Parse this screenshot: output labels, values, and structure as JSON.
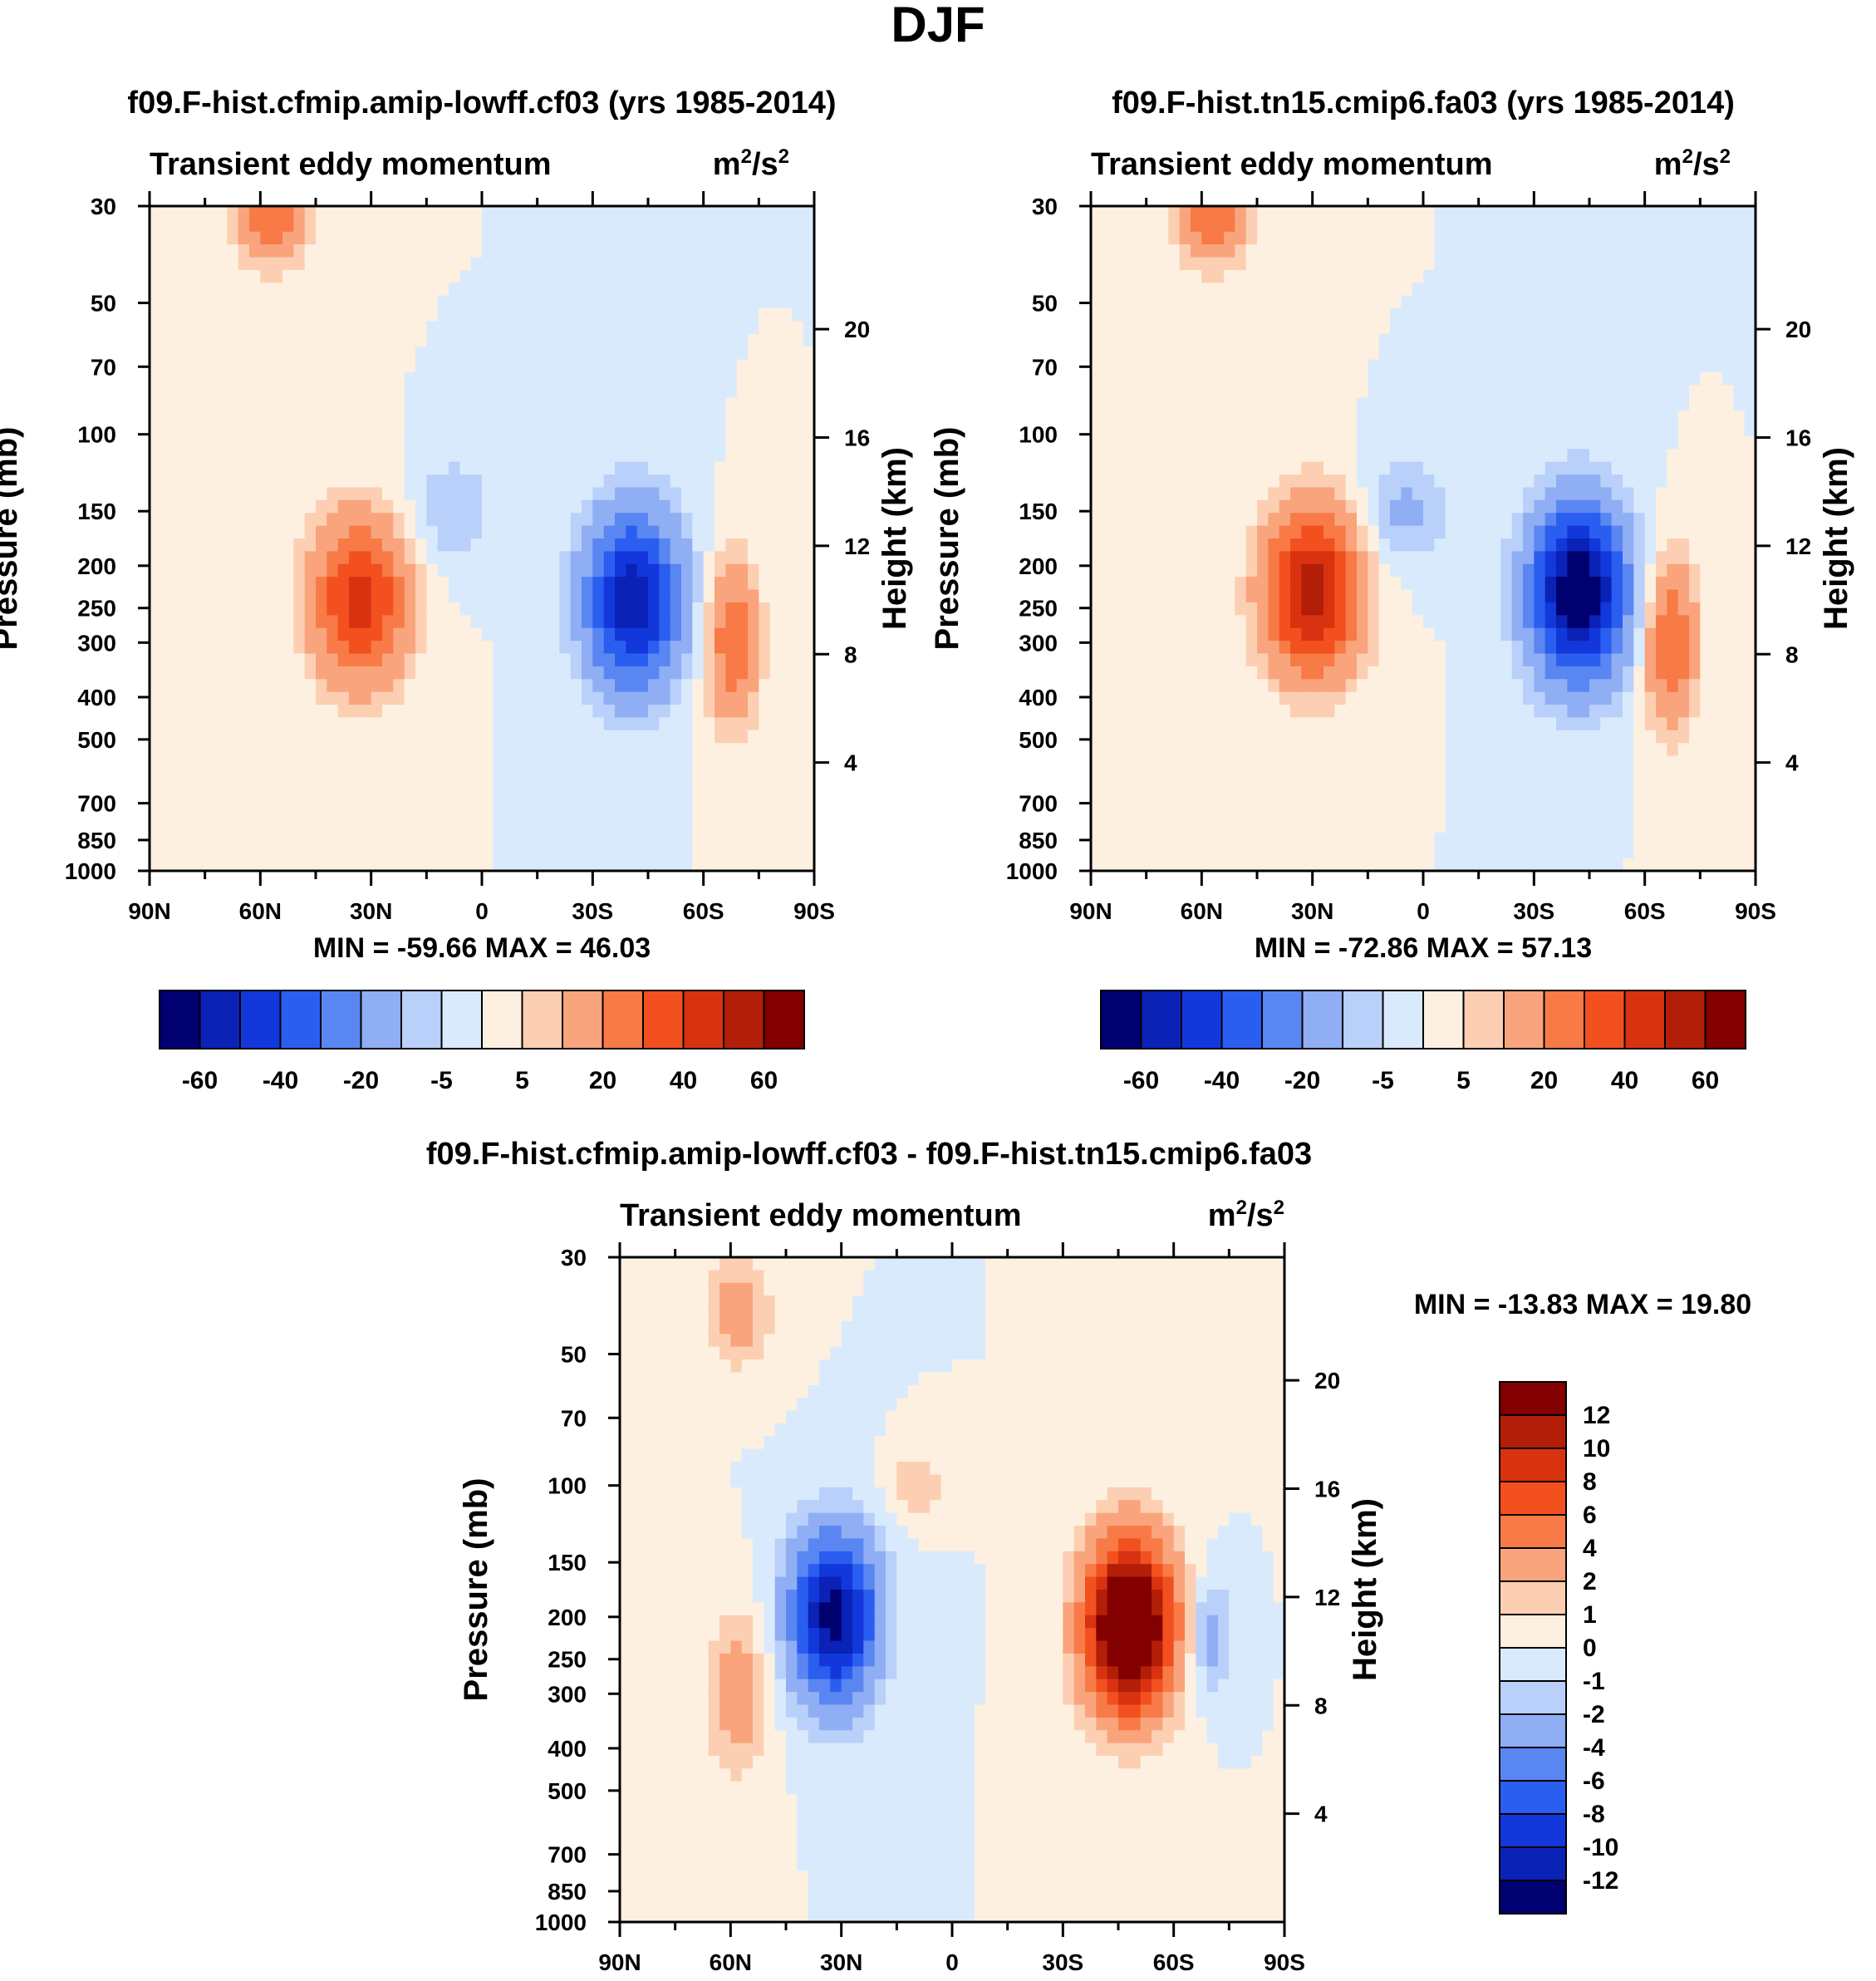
{
  "figure": {
    "title": "DJF"
  },
  "colors": {
    "levels": [
      "#000070",
      "#0a22b6",
      "#1238dc",
      "#2a5ef0",
      "#5a86f2",
      "#8faef4",
      "#b9d0fa",
      "#d9eafd",
      "#fdf0e0",
      "#fccfb3",
      "#f9a47c",
      "#f77a47",
      "#f3501f",
      "#d83210",
      "#b31e08",
      "#820000"
    ]
  },
  "icons": {
    "colorbar": "colorbar-icon"
  },
  "chart_data": [
    {
      "type": "heatmap",
      "id": "model",
      "case_title": "f09.F-hist.cfmip.amip-lowff.cf03 (yrs 1985-2014)",
      "left_string": "Transient eddy momentum",
      "units": "m²/s²",
      "units_base": "m",
      "units_mid": "/s",
      "ylabel": "Pressure (mb)",
      "y2label": "Height (km)",
      "x_ticks": [
        "90N",
        "60N",
        "30N",
        "0",
        "30S",
        "60S",
        "90S"
      ],
      "x_tick_values": [
        90,
        60,
        30,
        0,
        -30,
        -60,
        -90
      ],
      "y_ticks": [
        "30",
        "50",
        "70",
        "100",
        "150",
        "200",
        "250",
        "300",
        "400",
        "500",
        "700",
        "850",
        "1000"
      ],
      "y_tick_values": [
        30,
        50,
        70,
        100,
        150,
        200,
        250,
        300,
        400,
        500,
        700,
        850,
        1000
      ],
      "height_ticks": [
        "20",
        "16",
        "12",
        "8",
        "4"
      ],
      "height_tick_values": [
        20,
        16,
        12,
        8,
        4
      ],
      "xlim": [
        90,
        -90
      ],
      "ylim_mb": [
        1000,
        30
      ],
      "min_max": "MIN = -59.66  MAX =  46.03",
      "min": -59.66,
      "max": 46.03,
      "colorbar_labels": [
        "-60",
        "-40",
        "-20",
        "-5",
        "5",
        "20",
        "40",
        "60"
      ],
      "levels": [
        -70,
        -60,
        -50,
        -40,
        -30,
        -20,
        -10,
        -5,
        0,
        5,
        10,
        20,
        30,
        40,
        50,
        60
      ],
      "features": [
        {
          "lat": 33,
          "p_mb": 240,
          "value": 45,
          "spread_lat": 9,
          "spread_logp": 0.3
        },
        {
          "lat": 57,
          "p_mb": 30,
          "value": 30,
          "spread_lat": 7,
          "spread_logp": 0.2
        },
        {
          "lat": -41,
          "p_mb": 240,
          "value": -58,
          "spread_lat": 9,
          "spread_logp": 0.32
        },
        {
          "lat": 8,
          "p_mb": 150,
          "value": -10,
          "spread_lat": 8,
          "spread_logp": 0.2
        },
        {
          "lat": -68,
          "p_mb": 300,
          "value": 28,
          "spread_lat": 5,
          "spread_logp": 0.3
        }
      ]
    },
    {
      "type": "heatmap",
      "id": "control",
      "case_title": "f09.F-hist.tn15.cmip6.fa03 (yrs 1985-2014)",
      "left_string": "Transient eddy momentum",
      "units": "m²/s²",
      "units_base": "m",
      "units_mid": "/s",
      "ylabel": "Pressure (mb)",
      "y2label": "Height (km)",
      "x_ticks": [
        "90N",
        "60N",
        "30N",
        "0",
        "30S",
        "60S",
        "90S"
      ],
      "x_tick_values": [
        90,
        60,
        30,
        0,
        -30,
        -60,
        -90
      ],
      "y_ticks": [
        "30",
        "50",
        "70",
        "100",
        "150",
        "200",
        "250",
        "300",
        "400",
        "500",
        "700",
        "850",
        "1000"
      ],
      "y_tick_values": [
        30,
        50,
        70,
        100,
        150,
        200,
        250,
        300,
        400,
        500,
        700,
        850,
        1000
      ],
      "height_ticks": [
        "20",
        "16",
        "12",
        "8",
        "4"
      ],
      "height_tick_values": [
        20,
        16,
        12,
        8,
        4
      ],
      "xlim": [
        90,
        -90
      ],
      "ylim_mb": [
        1000,
        30
      ],
      "min_max": "MIN = -72.86  MAX =  57.13",
      "min": -72.86,
      "max": 57.13,
      "colorbar_labels": [
        "-60",
        "-40",
        "-20",
        "-5",
        "5",
        "20",
        "40",
        "60"
      ],
      "levels": [
        -70,
        -60,
        -50,
        -40,
        -30,
        -20,
        -10,
        -5,
        0,
        5,
        10,
        20,
        30,
        40,
        50,
        60
      ],
      "features": [
        {
          "lat": 30,
          "p_mb": 230,
          "value": 56,
          "spread_lat": 9,
          "spread_logp": 0.3
        },
        {
          "lat": 57,
          "p_mb": 30,
          "value": 30,
          "spread_lat": 7,
          "spread_logp": 0.2
        },
        {
          "lat": -42,
          "p_mb": 230,
          "value": -72,
          "spread_lat": 9,
          "spread_logp": 0.32
        },
        {
          "lat": 5,
          "p_mb": 150,
          "value": -12,
          "spread_lat": 8,
          "spread_logp": 0.2
        },
        {
          "lat": -67,
          "p_mb": 300,
          "value": 30,
          "spread_lat": 5,
          "spread_logp": 0.3
        }
      ]
    },
    {
      "type": "heatmap",
      "id": "difference",
      "case_title": "f09.F-hist.cfmip.amip-lowff.cf03 - f09.F-hist.tn15.cmip6.fa03",
      "left_string": "Transient eddy momentum",
      "units": "m²/s²",
      "units_base": "m",
      "units_mid": "/s",
      "ylabel": "Pressure (mb)",
      "y2label": "Height (km)",
      "x_ticks": [
        "90N",
        "60N",
        "30N",
        "0",
        "30S",
        "60S",
        "90S"
      ],
      "x_tick_values": [
        90,
        60,
        30,
        0,
        -30,
        -60,
        -90
      ],
      "y_ticks": [
        "30",
        "50",
        "70",
        "100",
        "150",
        "200",
        "250",
        "300",
        "400",
        "500",
        "700",
        "850",
        "1000"
      ],
      "y_tick_values": [
        30,
        50,
        70,
        100,
        150,
        200,
        250,
        300,
        400,
        500,
        700,
        850,
        1000
      ],
      "height_ticks": [
        "20",
        "16",
        "12",
        "8",
        "4"
      ],
      "height_tick_values": [
        20,
        16,
        12,
        8,
        4
      ],
      "xlim": [
        90,
        -90
      ],
      "ylim_mb": [
        1000,
        30
      ],
      "min_max": "MIN = -13.83  MAX =  19.80",
      "min": -13.83,
      "max": 19.8,
      "colorbar_labels": [
        "12",
        "10",
        "8",
        "6",
        "4",
        "2",
        "1",
        "0",
        "-1",
        "-2",
        "-4",
        "-6",
        "-8",
        "-10",
        "-12"
      ],
      "levels": [
        -14,
        -12,
        -10,
        -8,
        -6,
        -4,
        -2,
        -1,
        0,
        1,
        2,
        4,
        6,
        8,
        10,
        12
      ],
      "features": [
        {
          "lat": 32,
          "p_mb": 200,
          "value": -13,
          "spread_lat": 8,
          "spread_logp": 0.3
        },
        {
          "lat": -48,
          "p_mb": 210,
          "value": 19,
          "spread_lat": 8,
          "spread_logp": 0.3
        },
        {
          "lat": 58,
          "p_mb": 300,
          "value": 3,
          "spread_lat": 6,
          "spread_logp": 0.3
        },
        {
          "lat": 58,
          "p_mb": 40,
          "value": 3,
          "spread_lat": 6,
          "spread_logp": 0.2
        },
        {
          "lat": 10,
          "p_mb": 100,
          "value": 2,
          "spread_lat": 5,
          "spread_logp": 0.12
        },
        {
          "lat": -70,
          "p_mb": 220,
          "value": -3,
          "spread_lat": 4,
          "spread_logp": 0.2
        }
      ]
    }
  ]
}
